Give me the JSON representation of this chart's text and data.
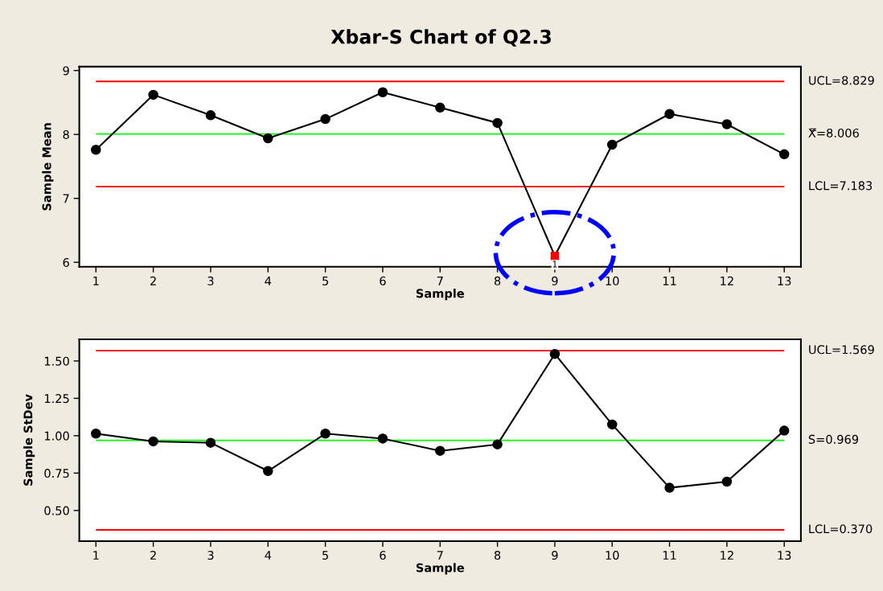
{
  "chart_data": [
    {
      "type": "line",
      "title": "Xbar-S Chart of Q2.3",
      "xlabel": "Sample",
      "ylabel": "Sample Mean",
      "x": [
        1,
        2,
        3,
        4,
        5,
        6,
        7,
        8,
        9,
        10,
        11,
        12,
        13
      ],
      "xlim": [
        0.71,
        13.29
      ],
      "xticks": [
        1,
        2,
        3,
        4,
        5,
        6,
        7,
        8,
        9,
        10,
        11,
        12,
        13
      ],
      "ylim": [
        5.93,
        9.06
      ],
      "yticks": [
        6,
        7,
        8,
        9
      ],
      "line_style": "solid",
      "grid": false,
      "legend": false,
      "series": [
        {
          "type": "line",
          "marker": "none",
          "color": "#000000",
          "values": [
            7.76,
            8.62,
            8.3,
            7.94,
            8.24,
            8.66,
            8.42,
            8.18,
            6.1,
            7.84,
            8.32,
            8.16,
            7.69
          ]
        },
        {
          "type": "scatter",
          "marker": "circle",
          "color": "#000000",
          "values": [
            7.76,
            8.62,
            8.3,
            7.94,
            8.24,
            8.66,
            8.42,
            8.18,
            null,
            7.84,
            8.32,
            8.16,
            7.69
          ]
        },
        {
          "type": "scatter",
          "marker": "square",
          "color": "#ff0000",
          "x": [
            9
          ],
          "values": [
            6.1
          ]
        }
      ],
      "ref_lines": [
        {
          "axis": "y",
          "value": 8.829,
          "label": "UCL=8.829",
          "color": "#ff0000"
        },
        {
          "axis": "y",
          "value": 8.006,
          "label": "X̿=8.006",
          "color": "#00ff00"
        },
        {
          "axis": "y",
          "value": 7.183,
          "label": "LCL=7.183",
          "color": "#ff0000"
        }
      ],
      "annotations": [
        "1"
      ]
    },
    {
      "type": "line",
      "xlabel": "Sample",
      "ylabel": "Sample StDev",
      "x": [
        1,
        2,
        3,
        4,
        5,
        6,
        7,
        8,
        9,
        10,
        11,
        12,
        13
      ],
      "xlim": [
        0.71,
        13.29
      ],
      "xticks": [
        1,
        2,
        3,
        4,
        5,
        6,
        7,
        8,
        9,
        10,
        11,
        12,
        13
      ],
      "ylim": [
        0.295,
        1.645
      ],
      "yticks": [
        {
          "value": 0.5,
          "label": "0.50"
        },
        {
          "value": 0.75,
          "label": "0.75"
        },
        {
          "value": 1.0,
          "label": "1.00"
        },
        {
          "value": 1.25,
          "label": "1.25"
        },
        {
          "value": 1.5,
          "label": "1.50"
        }
      ],
      "marker": "circle",
      "line_style": "solid",
      "grid": false,
      "legend": false,
      "series": [
        {
          "color": "#000000",
          "values": [
            1.014,
            0.962,
            0.953,
            0.764,
            1.014,
            0.981,
            0.899,
            0.942,
            1.547,
            1.075,
            0.652,
            0.693,
            1.034
          ]
        }
      ],
      "ref_lines": [
        {
          "axis": "y",
          "value": 1.569,
          "label": "UCL=1.569",
          "color": "#ff0000"
        },
        {
          "axis": "y",
          "value": 0.969,
          "label": "S̄=0.969",
          "color": "#00ff00"
        },
        {
          "axis": "y",
          "value": 0.37,
          "label": "LCL=0.370",
          "color": "#ff0000"
        }
      ]
    }
  ]
}
